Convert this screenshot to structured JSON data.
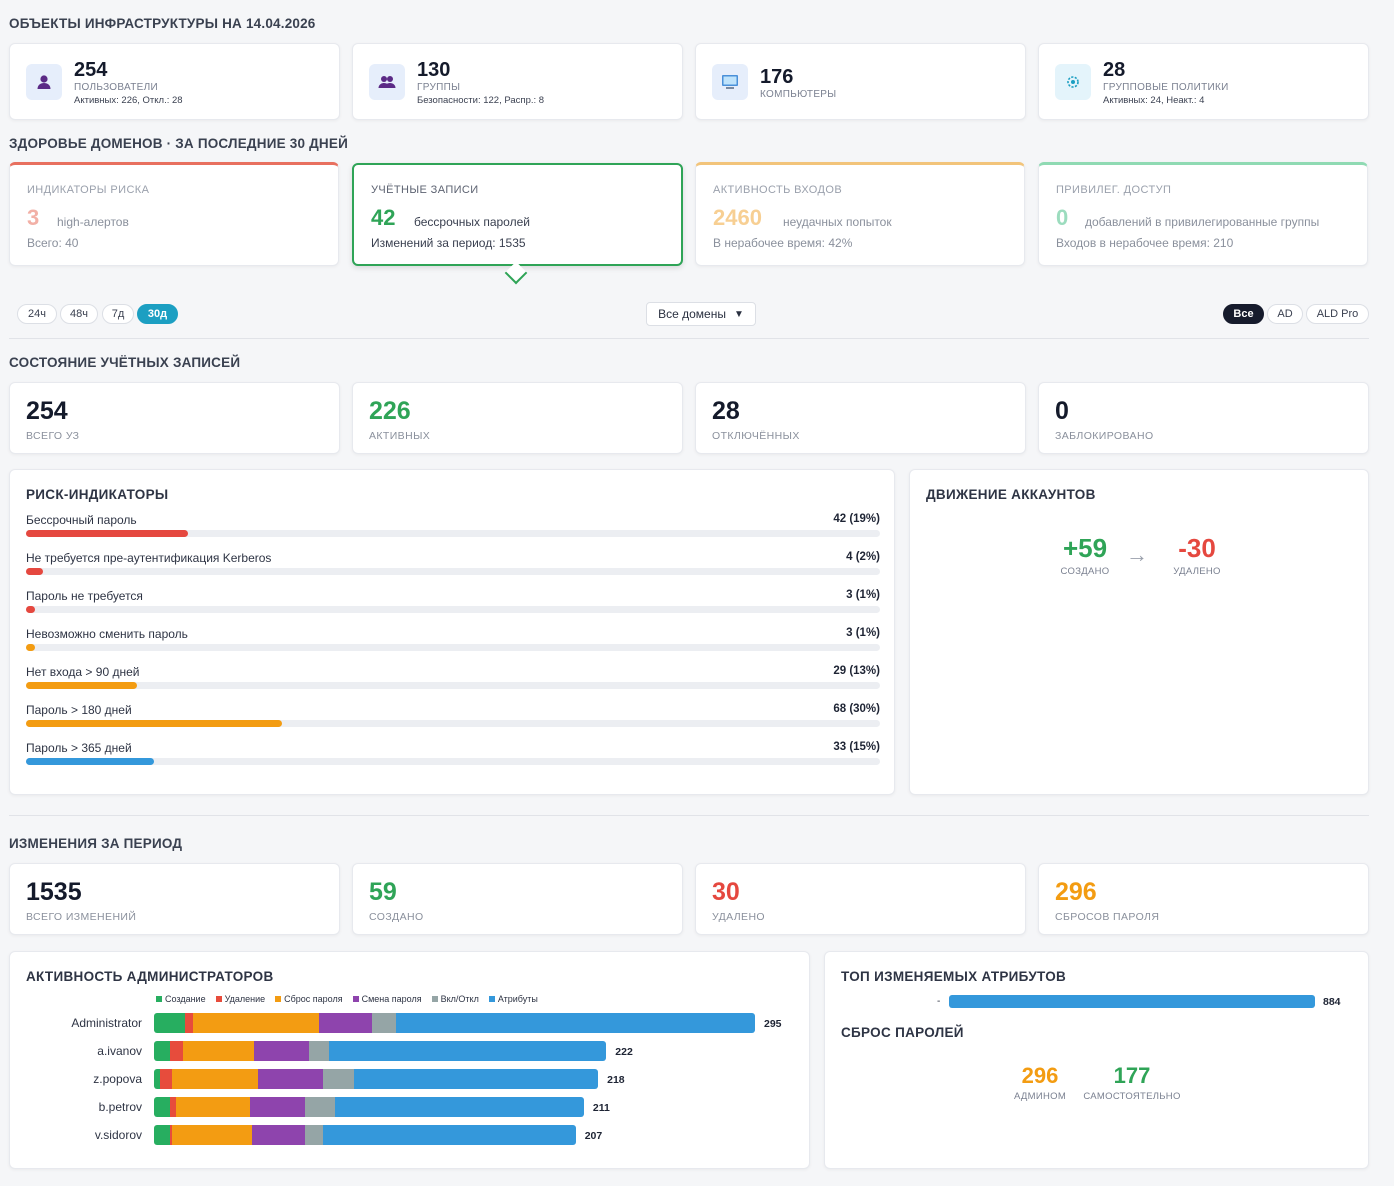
{
  "infra": {
    "title": "ОБЪЕКТЫ ИНФРАСТРУКТУРЫ НА 14.04.2026",
    "cards": [
      {
        "num": "254",
        "label": "ПОЛЬЗОВАТЕЛИ",
        "sub": "Активных: 226, Откл.: 28",
        "icon": "user-icon"
      },
      {
        "num": "130",
        "label": "ГРУППЫ",
        "sub": "Безопасности: 122, Распр.: 8",
        "icon": "users-icon"
      },
      {
        "num": "176",
        "label": "КОМПЬЮТЕРЫ",
        "sub": "",
        "icon": "computer-icon"
      },
      {
        "num": "28",
        "label": "ГРУППОВЫЕ ПОЛИТИКИ",
        "sub": "Активных: 24, Неакт.: 4",
        "icon": "gear-icon"
      }
    ]
  },
  "health": {
    "title": "ЗДОРОВЬЕ ДОМЕНОВ · ЗА ПОСЛЕДНИЕ 30 ДНЕЙ",
    "cards": [
      {
        "head": "ИНДИКАТОРЫ РИСКА",
        "big": "3",
        "big_label": "high-алертов",
        "foot": "Всего: 40",
        "color": "#e8705f"
      },
      {
        "head": "УЧЁТНЫЕ ЗАПИСИ",
        "big": "42",
        "big_label": "бессрочных паролей",
        "foot": "Изменений за период: 1535",
        "color": "#2fa457"
      },
      {
        "head": "АКТИВНОСТЬ ВХОДОВ",
        "big": "2460",
        "big_label": "неудачных попыток",
        "foot": "В нерабочее время: 42%",
        "color": "#f2a93b"
      },
      {
        "head": "ПРИВИЛЕГ. ДОСТУП",
        "big": "0",
        "big_label": "добавлений в привилегированные группы",
        "foot": "Входов в нерабочее время: 210",
        "color": "#4cc08a"
      }
    ]
  },
  "filters": {
    "periods": [
      "24ч",
      "48ч",
      "7д",
      "30д"
    ],
    "active_period": "30д",
    "domain_select": "Все домены",
    "sources": [
      "Все",
      "AD",
      "ALD Pro"
    ],
    "active_source": "Все"
  },
  "accounts": {
    "title": "СОСТОЯНИЕ УЧЁТНЫХ ЗАПИСЕЙ",
    "stats": [
      {
        "num": "254",
        "label": "ВСЕГО УЗ",
        "color": "#141a2b"
      },
      {
        "num": "226",
        "label": "АКТИВНЫХ",
        "color": "#2fa457"
      },
      {
        "num": "28",
        "label": "ОТКЛЮЧЁННЫХ",
        "color": "#141a2b"
      },
      {
        "num": "0",
        "label": "ЗАБЛОКИРОВАНО",
        "color": "#141a2b"
      }
    ]
  },
  "risk": {
    "title": "РИСК-ИНДИКАТОРЫ",
    "rows": [
      {
        "label": "Бессрочный пароль",
        "value": "42 (19%)",
        "pct": 19,
        "color": "#e5483f"
      },
      {
        "label": "Не требуется пре-аутентификация Kerberos",
        "value": "4 (2%)",
        "pct": 2,
        "color": "#e5483f"
      },
      {
        "label": "Пароль не требуется",
        "value": "3 (1%)",
        "pct": 1,
        "color": "#e5483f"
      },
      {
        "label": "Невозможно сменить пароль",
        "value": "3 (1%)",
        "pct": 1,
        "color": "#f39c12"
      },
      {
        "label": "Нет входа > 90 дней",
        "value": "29 (13%)",
        "pct": 13,
        "color": "#f39c12"
      },
      {
        "label": "Пароль > 180 дней",
        "value": "68 (30%)",
        "pct": 30,
        "color": "#f39c12"
      },
      {
        "label": "Пароль > 365 дней",
        "value": "33 (15%)",
        "pct": 15,
        "color": "#3498db"
      }
    ]
  },
  "movement": {
    "title": "ДВИЖЕНИЕ АККАУНТОВ",
    "created": "+59",
    "created_label": "СОЗДАНО",
    "arrow": "→",
    "deleted": "-30",
    "deleted_label": "УДАЛЕНО"
  },
  "changes": {
    "title": "ИЗМЕНЕНИЯ ЗА ПЕРИОД",
    "stats": [
      {
        "num": "1535",
        "label": "ВСЕГО ИЗМЕНЕНИЙ",
        "color": "#141a2b"
      },
      {
        "num": "59",
        "label": "СОЗДАНО",
        "color": "#2fa457"
      },
      {
        "num": "30",
        "label": "УДАЛЕНО",
        "color": "#e5483f"
      },
      {
        "num": "296",
        "label": "СБРОСОВ ПАРОЛЯ",
        "color": "#f39c12"
      }
    ]
  },
  "admin_activity": {
    "title": "АКТИВНОСТЬ АДМИНИСТРАТОРОВ"
  },
  "chart_data": {
    "type": "bar",
    "orientation": "horizontal",
    "stacked": true,
    "categories": [
      "Administrator",
      "a.ivanov",
      "z.popova",
      "b.petrov",
      "v.sidorov"
    ],
    "totals": [
      295,
      222,
      218,
      211,
      207
    ],
    "legend_position": "top",
    "series": [
      {
        "name": "Создание",
        "color": "#27ae60",
        "values": [
          15,
          8,
          3,
          8,
          8
        ]
      },
      {
        "name": "Удаление",
        "color": "#e74c3c",
        "values": [
          4,
          6,
          6,
          3,
          1
        ]
      },
      {
        "name": "Сброс пароля",
        "color": "#f39c12",
        "values": [
          62,
          35,
          42,
          36,
          39
        ]
      },
      {
        "name": "Смена пароля",
        "color": "#8e44ad",
        "values": [
          26,
          27,
          32,
          27,
          26
        ]
      },
      {
        "name": "Вкл/Откл",
        "color": "#95a5a6",
        "values": [
          12,
          10,
          15,
          15,
          9
        ]
      },
      {
        "name": "Атрибуты",
        "color": "#3498db",
        "values": [
          176,
          136,
          120,
          122,
          124
        ]
      }
    ]
  },
  "top_attrs": {
    "title": "ТОП ИЗМЕНЯЕМЫХ АТРИБУТОВ",
    "rows": [
      {
        "label": "-",
        "value": 884,
        "value_text": "884"
      }
    ]
  },
  "pwd_reset": {
    "title": "СБРОС ПАРОЛЕЙ",
    "admin": "296",
    "admin_label": "АДМИНОМ",
    "self": "177",
    "self_label": "САМОСТОЯТЕЛЬНО"
  }
}
